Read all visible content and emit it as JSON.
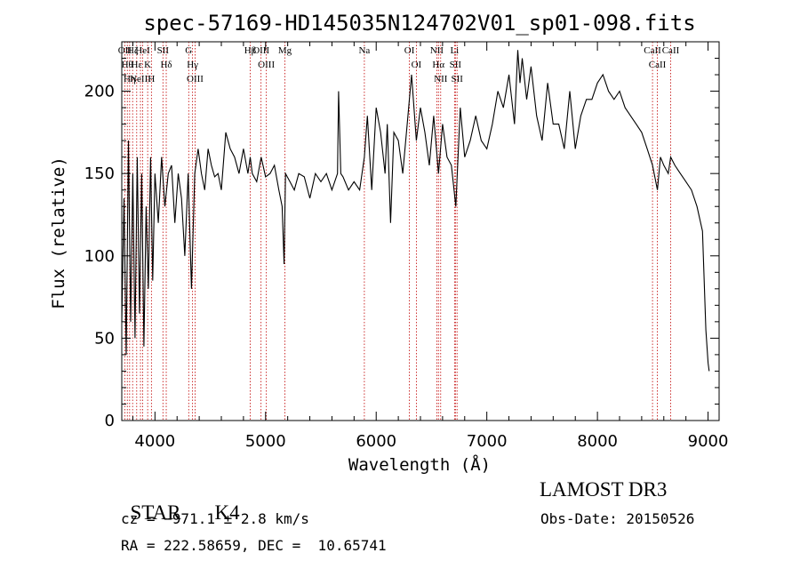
{
  "chart_data": {
    "type": "line",
    "title": "spec-57169-HD145035N124702V01_sp01-098.fits",
    "xlabel": "Wavelength (Å)",
    "ylabel": "Flux (relative)",
    "xlim": [
      3700,
      9100
    ],
    "ylim": [
      0,
      230
    ],
    "x_ticks": [
      4000,
      5000,
      6000,
      7000,
      8000,
      9000
    ],
    "y_ticks": [
      0,
      50,
      100,
      150,
      200
    ],
    "grid": false,
    "legend": "none",
    "series": [
      {
        "x": [
          3700,
          3720,
          3740,
          3760,
          3780,
          3800,
          3820,
          3840,
          3860,
          3880,
          3900,
          3920,
          3940,
          3960,
          3980,
          4000,
          4030,
          4060,
          4090,
          4120,
          4150,
          4180,
          4210,
          4240,
          4270,
          4300,
          4330,
          4360,
          4390,
          4420,
          4450,
          4480,
          4510,
          4540,
          4570,
          4600,
          4640,
          4680,
          4720,
          4760,
          4800,
          4840,
          4861,
          4880,
          4920,
          4960,
          5000,
          5040,
          5080,
          5120,
          5150,
          5167,
          5180,
          5220,
          5260,
          5300,
          5350,
          5400,
          5450,
          5500,
          5550,
          5600,
          5650,
          5660,
          5680,
          5700,
          5750,
          5800,
          5850,
          5893,
          5920,
          5960,
          6000,
          6040,
          6080,
          6100,
          6130,
          6160,
          6200,
          6240,
          6280,
          6320,
          6363,
          6400,
          6440,
          6480,
          6520,
          6563,
          6600,
          6640,
          6680,
          6720,
          6760,
          6800,
          6850,
          6900,
          6950,
          7000,
          7050,
          7100,
          7150,
          7200,
          7250,
          7280,
          7300,
          7320,
          7360,
          7400,
          7450,
          7500,
          7550,
          7600,
          7650,
          7700,
          7750,
          7800,
          7850,
          7900,
          7950,
          8000,
          8050,
          8100,
          8150,
          8200,
          8250,
          8300,
          8350,
          8400,
          8450,
          8498,
          8542,
          8570,
          8600,
          8640,
          8662,
          8700,
          8750,
          8800,
          8850,
          8900,
          8950,
          8980,
          9000,
          9010
        ],
        "y": [
          60,
          135,
          40,
          170,
          60,
          150,
          50,
          160,
          65,
          150,
          45,
          130,
          80,
          160,
          85,
          150,
          120,
          160,
          130,
          150,
          155,
          120,
          150,
          135,
          100,
          150,
          80,
          150,
          165,
          150,
          140,
          165,
          155,
          148,
          150,
          140,
          175,
          165,
          160,
          150,
          165,
          150,
          160,
          150,
          145,
          160,
          148,
          150,
          155,
          140,
          130,
          95,
          150,
          145,
          140,
          150,
          148,
          135,
          150,
          145,
          150,
          140,
          150,
          200,
          150,
          148,
          140,
          145,
          140,
          160,
          185,
          140,
          190,
          175,
          150,
          180,
          120,
          175,
          170,
          150,
          180,
          210,
          170,
          190,
          175,
          155,
          185,
          150,
          180,
          160,
          155,
          130,
          190,
          160,
          170,
          185,
          170,
          165,
          180,
          200,
          190,
          210,
          180,
          225,
          205,
          220,
          195,
          215,
          185,
          170,
          205,
          180,
          180,
          165,
          200,
          165,
          185,
          195,
          195,
          205,
          210,
          200,
          195,
          200,
          190,
          185,
          180,
          175,
          165,
          155,
          140,
          160,
          155,
          150,
          160,
          155,
          150,
          145,
          140,
          130,
          115,
          55,
          35,
          30
        ]
      }
    ],
    "line_markers": [
      {
        "wl": 3727,
        "label": "OII"
      },
      {
        "wl": 3750,
        "label": "Hθ"
      },
      {
        "wl": 3771,
        "label": "Hη"
      },
      {
        "wl": 3798,
        "label": "Hζ"
      },
      {
        "wl": 3835,
        "label": "Hε"
      },
      {
        "wl": 3869,
        "label": "NeIII"
      },
      {
        "wl": 3889,
        "label": "HeI"
      },
      {
        "wl": 3934,
        "label": "K"
      },
      {
        "wl": 3968,
        "label": "H"
      },
      {
        "wl": 4072,
        "label": "SII"
      },
      {
        "wl": 4102,
        "label": "Hδ"
      },
      {
        "wl": 4305,
        "label": "G"
      },
      {
        "wl": 4340,
        "label": "Hγ"
      },
      {
        "wl": 4363,
        "label": "OIII"
      },
      {
        "wl": 4861,
        "label": "Hβ"
      },
      {
        "wl": 4959,
        "label": "OIII"
      },
      {
        "wl": 5007,
        "label": "OIII"
      },
      {
        "wl": 5175,
        "label": "Mg"
      },
      {
        "wl": 5893,
        "label": "Na"
      },
      {
        "wl": 6300,
        "label": "OI"
      },
      {
        "wl": 6363,
        "label": "OI"
      },
      {
        "wl": 6548,
        "label": "NII"
      },
      {
        "wl": 6563,
        "label": "Hα"
      },
      {
        "wl": 6583,
        "label": "NII"
      },
      {
        "wl": 6708,
        "label": "Li"
      },
      {
        "wl": 6716,
        "label": "SII"
      },
      {
        "wl": 6731,
        "label": "SII"
      },
      {
        "wl": 8498,
        "label": "CaII"
      },
      {
        "wl": 8542,
        "label": "CaII"
      },
      {
        "wl": 8662,
        "label": "CaII"
      }
    ]
  },
  "info": {
    "class_label": "STAR",
    "subclass": "K4",
    "survey": "LAMOST DR3",
    "redshift": "cz = −971.1 ± 2.8 km/s",
    "obs_date": "Obs-Date: 20150526",
    "coords": "RA = 222.58659, DEC =  10.65741"
  },
  "colors": {
    "spectrum": "#000000",
    "line_marker": "#c00000",
    "axes": "#000000",
    "background": "#ffffff"
  }
}
